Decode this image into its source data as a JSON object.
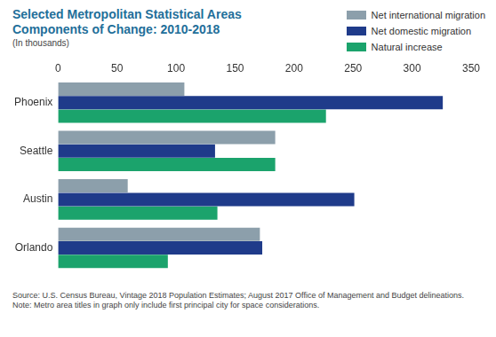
{
  "chart_data": {
    "type": "bar",
    "orientation": "horizontal",
    "title": "Selected Metropolitan Statistical Areas\nComponents of Change: 2010-2018",
    "subtitle": "(In thousands)",
    "annotations": [
      "Source: U.S. Census Bureau, Vintage 2018 Population Estimates; August 2017 Office of Management and Budget delineations.",
      "Note: Metro area titles in graph only include first principal city for space considerations."
    ],
    "categories": [
      "Phoenix",
      "Seattle",
      "Austin",
      "Orlando"
    ],
    "series": [
      {
        "name": "Net international migration",
        "color": "#8c9fab",
        "values": [
          107,
          184,
          59,
          171
        ]
      },
      {
        "name": "Net domestic migration",
        "color": "#1f3b8a",
        "values": [
          326,
          133,
          251,
          173
        ]
      },
      {
        "name": "Natural increase",
        "color": "#1ba36c",
        "values": [
          227,
          184,
          135,
          93
        ]
      }
    ],
    "xlim": [
      0,
      350
    ],
    "xticks": [
      0,
      50,
      100,
      150,
      200,
      250,
      300,
      350
    ],
    "grid": false,
    "legend": "top right",
    "data_labels": false
  }
}
